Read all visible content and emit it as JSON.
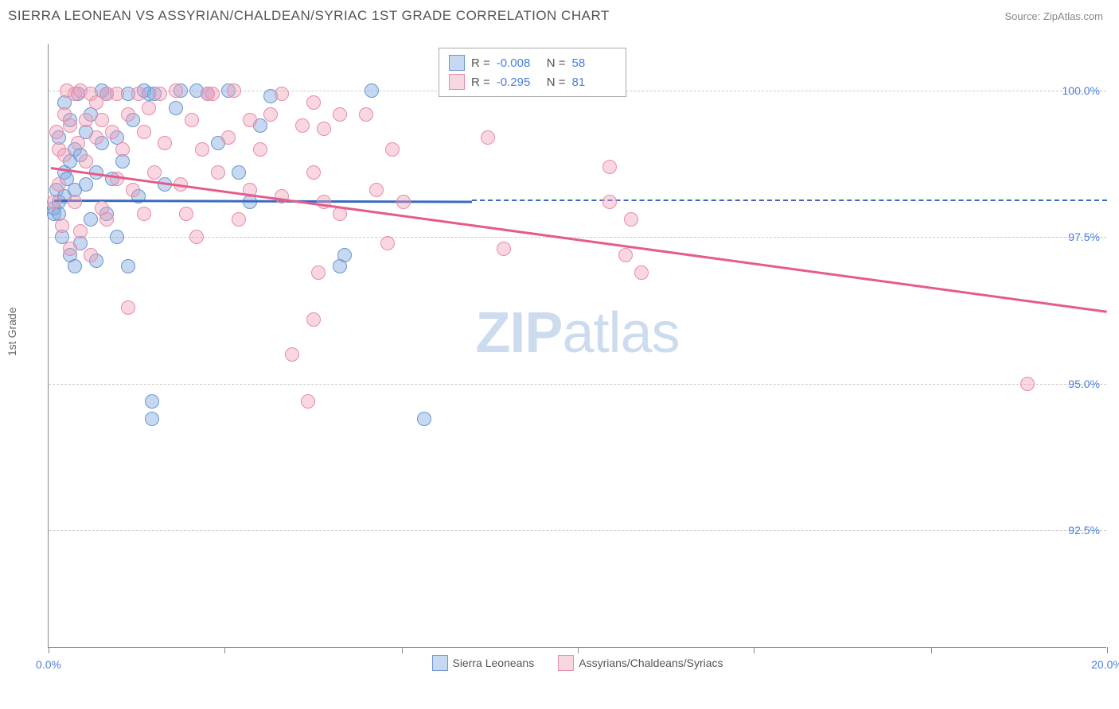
{
  "header": {
    "title": "SIERRA LEONEAN VS ASSYRIAN/CHALDEAN/SYRIAC 1ST GRADE CORRELATION CHART",
    "source": "Source: ZipAtlas.com"
  },
  "chart": {
    "type": "scatter",
    "ylabel": "1st Grade",
    "watermark": {
      "part1": "ZIP",
      "part2": "atlas"
    },
    "xlim": [
      0,
      20
    ],
    "ylim": [
      90.5,
      100.8
    ],
    "xticks": [
      {
        "pos": 0,
        "label": "0.0%"
      },
      {
        "pos": 3.33,
        "label": ""
      },
      {
        "pos": 6.67,
        "label": ""
      },
      {
        "pos": 10,
        "label": ""
      },
      {
        "pos": 13.33,
        "label": ""
      },
      {
        "pos": 16.67,
        "label": ""
      },
      {
        "pos": 20,
        "label": "20.0%"
      }
    ],
    "ygridlines": [
      {
        "y": 92.5,
        "label": "92.5%"
      },
      {
        "y": 95.0,
        "label": "95.0%"
      },
      {
        "y": 97.5,
        "label": "97.5%"
      },
      {
        "y": 100.0,
        "label": "100.0%"
      }
    ],
    "series": [
      {
        "name": "Sierra Leoneans",
        "fill": "rgba(130,170,225,0.45)",
        "stroke": "#6a95d0",
        "line_color": "#3a6bbf",
        "R": "-0.008",
        "N": "58",
        "regression": {
          "x1": 0.1,
          "y1": 98.15,
          "x2": 8.0,
          "y2": 98.13,
          "dash_to_x": 20
        },
        "points": [
          [
            0.1,
            97.9
          ],
          [
            0.1,
            98.0
          ],
          [
            0.15,
            98.3
          ],
          [
            0.2,
            97.9
          ],
          [
            0.2,
            98.1
          ],
          [
            0.2,
            99.2
          ],
          [
            0.25,
            97.5
          ],
          [
            0.3,
            98.2
          ],
          [
            0.3,
            98.6
          ],
          [
            0.3,
            99.8
          ],
          [
            0.35,
            98.5
          ],
          [
            0.4,
            97.2
          ],
          [
            0.4,
            98.8
          ],
          [
            0.4,
            99.5
          ],
          [
            0.5,
            97.0
          ],
          [
            0.5,
            98.3
          ],
          [
            0.5,
            99.0
          ],
          [
            0.55,
            99.95
          ],
          [
            0.6,
            97.4
          ],
          [
            0.6,
            98.9
          ],
          [
            0.7,
            98.4
          ],
          [
            0.7,
            99.3
          ],
          [
            0.8,
            97.8
          ],
          [
            0.8,
            99.6
          ],
          [
            0.9,
            97.1
          ],
          [
            0.9,
            98.6
          ],
          [
            1.0,
            99.1
          ],
          [
            1.0,
            100.0
          ],
          [
            1.1,
            97.9
          ],
          [
            1.1,
            99.95
          ],
          [
            1.2,
            98.5
          ],
          [
            1.3,
            97.5
          ],
          [
            1.3,
            99.2
          ],
          [
            1.4,
            98.8
          ],
          [
            1.5,
            99.95
          ],
          [
            1.5,
            97.0
          ],
          [
            1.6,
            99.5
          ],
          [
            1.7,
            98.2
          ],
          [
            1.8,
            100.0
          ],
          [
            1.9,
            99.95
          ],
          [
            1.95,
            94.7
          ],
          [
            1.95,
            94.4
          ],
          [
            2.0,
            99.95
          ],
          [
            2.2,
            98.4
          ],
          [
            2.4,
            99.7
          ],
          [
            2.5,
            100.0
          ],
          [
            2.8,
            100.0
          ],
          [
            3.0,
            99.95
          ],
          [
            3.2,
            99.1
          ],
          [
            3.4,
            100.0
          ],
          [
            3.6,
            98.6
          ],
          [
            3.8,
            98.1
          ],
          [
            4.0,
            99.4
          ],
          [
            4.2,
            99.9
          ],
          [
            5.5,
            97.0
          ],
          [
            5.6,
            97.2
          ],
          [
            6.1,
            100.0
          ],
          [
            7.1,
            94.4
          ]
        ]
      },
      {
        "name": "Assyrians/Chaldeans/Syriacs",
        "fill": "rgba(240,155,180,0.40)",
        "stroke": "#e88aa8",
        "line_color": "#e55b8a",
        "R": "-0.295",
        "N": "81",
        "regression": {
          "x1": 0.05,
          "y1": 98.7,
          "x2": 20,
          "y2": 96.25
        },
        "points": [
          [
            0.1,
            98.1
          ],
          [
            0.15,
            99.3
          ],
          [
            0.2,
            98.4
          ],
          [
            0.2,
            99.0
          ],
          [
            0.25,
            97.7
          ],
          [
            0.3,
            99.6
          ],
          [
            0.3,
            98.9
          ],
          [
            0.35,
            100.0
          ],
          [
            0.4,
            97.3
          ],
          [
            0.4,
            99.4
          ],
          [
            0.5,
            98.1
          ],
          [
            0.5,
            99.95
          ],
          [
            0.55,
            99.1
          ],
          [
            0.6,
            97.6
          ],
          [
            0.6,
            100.0
          ],
          [
            0.7,
            98.8
          ],
          [
            0.7,
            99.5
          ],
          [
            0.8,
            99.95
          ],
          [
            0.8,
            97.2
          ],
          [
            0.9,
            99.2
          ],
          [
            0.9,
            99.8
          ],
          [
            1.0,
            98.0
          ],
          [
            1.0,
            99.5
          ],
          [
            1.1,
            99.95
          ],
          [
            1.1,
            97.8
          ],
          [
            1.2,
            99.3
          ],
          [
            1.3,
            98.5
          ],
          [
            1.3,
            99.95
          ],
          [
            1.4,
            99.0
          ],
          [
            1.5,
            96.3
          ],
          [
            1.5,
            99.6
          ],
          [
            1.6,
            98.3
          ],
          [
            1.7,
            99.95
          ],
          [
            1.8,
            97.9
          ],
          [
            1.8,
            99.3
          ],
          [
            1.9,
            99.7
          ],
          [
            2.0,
            98.6
          ],
          [
            2.1,
            99.95
          ],
          [
            2.2,
            99.1
          ],
          [
            2.4,
            100.0
          ],
          [
            2.5,
            98.4
          ],
          [
            2.6,
            97.9
          ],
          [
            2.7,
            99.5
          ],
          [
            2.8,
            97.5
          ],
          [
            2.9,
            99.0
          ],
          [
            3.0,
            99.95
          ],
          [
            3.1,
            99.95
          ],
          [
            3.2,
            98.6
          ],
          [
            3.4,
            99.2
          ],
          [
            3.5,
            100.0
          ],
          [
            3.6,
            97.8
          ],
          [
            3.8,
            99.5
          ],
          [
            3.8,
            98.3
          ],
          [
            4.0,
            99.0
          ],
          [
            4.2,
            99.6
          ],
          [
            4.4,
            98.2
          ],
          [
            4.4,
            99.95
          ],
          [
            4.6,
            95.5
          ],
          [
            4.8,
            99.4
          ],
          [
            4.9,
            94.7
          ],
          [
            5.0,
            99.8
          ],
          [
            5.0,
            96.1
          ],
          [
            5.0,
            98.6
          ],
          [
            5.1,
            96.9
          ],
          [
            5.2,
            99.35
          ],
          [
            5.2,
            98.1
          ],
          [
            5.5,
            99.6
          ],
          [
            5.5,
            97.9
          ],
          [
            6.0,
            99.6
          ],
          [
            6.2,
            98.3
          ],
          [
            6.4,
            97.4
          ],
          [
            6.5,
            99.0
          ],
          [
            6.7,
            98.1
          ],
          [
            8.3,
            99.2
          ],
          [
            8.6,
            97.3
          ],
          [
            10.6,
            98.7
          ],
          [
            10.6,
            98.1
          ],
          [
            10.9,
            97.2
          ],
          [
            11.0,
            97.8
          ],
          [
            11.2,
            96.9
          ],
          [
            18.5,
            95.0
          ]
        ]
      }
    ]
  }
}
